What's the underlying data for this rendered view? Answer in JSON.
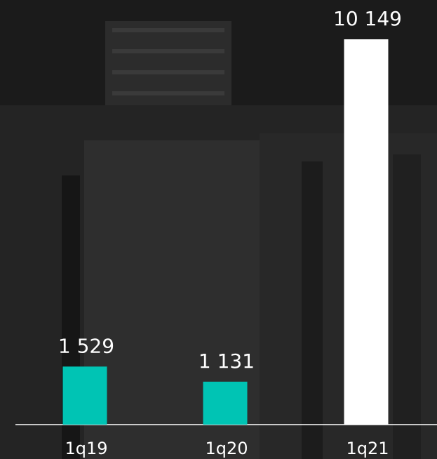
{
  "chart_data": {
    "type": "bar",
    "categories": [
      "1q19",
      "1q20",
      "1q21"
    ],
    "values": [
      1529,
      1131,
      10149
    ],
    "value_labels": [
      "1 529",
      "1 131",
      "10 149"
    ],
    "colors": [
      "#00c4b4",
      "#00c4b4",
      "#ffffff"
    ]
  }
}
